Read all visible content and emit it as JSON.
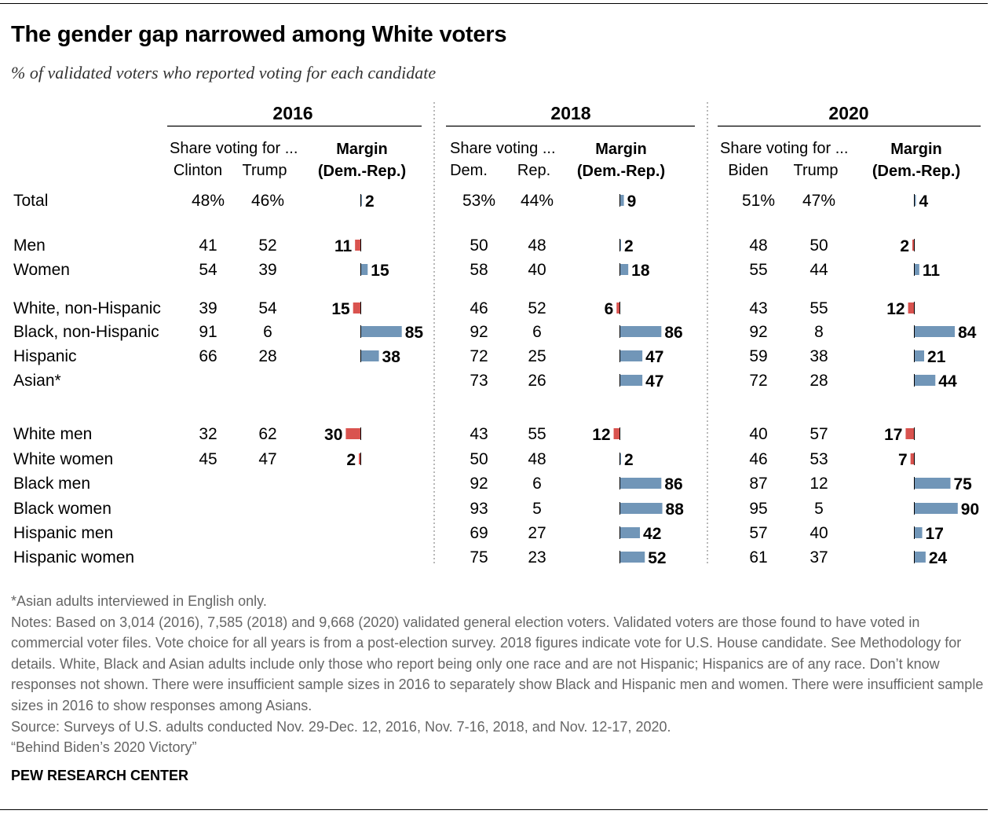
{
  "title": "The gender gap narrowed among White voters",
  "subtitle": "% of validated voters who reported voting for each candidate",
  "colors": {
    "dem": "#7196b8",
    "rep": "#d9534f",
    "text": "#000000",
    "note": "#666666",
    "divider": "#888888"
  },
  "chart_data": {
    "type": "table",
    "groups": [
      {
        "year": "2016",
        "share_header": "Share voting for ...",
        "dem_label": "Clinton",
        "rep_label": "Trump",
        "margin_header": [
          "Margin",
          "(Dem.-Rep.)"
        ]
      },
      {
        "year": "2018",
        "share_header": "Share voting ...",
        "dem_label": "Dem.",
        "rep_label": "Rep.",
        "margin_header": [
          "Margin",
          "(Dem.-Rep.)"
        ]
      },
      {
        "year": "2020",
        "share_header": "Share voting for ...",
        "dem_label": "Biden",
        "rep_label": "Trump",
        "margin_header": [
          "Margin",
          "(Dem.-Rep.)"
        ]
      }
    ],
    "rows": [
      {
        "label": "Total",
        "values": [
          {
            "dem": "48%",
            "rep": "46%",
            "margin": 2
          },
          {
            "dem": "53%",
            "rep": "44%",
            "margin": 9
          },
          {
            "dem": "51%",
            "rep": "47%",
            "margin": 4
          }
        ]
      },
      {
        "label": "Men",
        "values": [
          {
            "dem": "41",
            "rep": "52",
            "margin": -11
          },
          {
            "dem": "50",
            "rep": "48",
            "margin": 2
          },
          {
            "dem": "48",
            "rep": "50",
            "margin": -2
          }
        ]
      },
      {
        "label": "Women",
        "values": [
          {
            "dem": "54",
            "rep": "39",
            "margin": 15
          },
          {
            "dem": "58",
            "rep": "40",
            "margin": 18
          },
          {
            "dem": "55",
            "rep": "44",
            "margin": 11
          }
        ]
      },
      {
        "label": "White, non-Hispanic",
        "values": [
          {
            "dem": "39",
            "rep": "54",
            "margin": -15
          },
          {
            "dem": "46",
            "rep": "52",
            "margin": -6
          },
          {
            "dem": "43",
            "rep": "55",
            "margin": -12
          }
        ]
      },
      {
        "label": "Black, non-Hispanic",
        "values": [
          {
            "dem": "91",
            "rep": "6",
            "margin": 85
          },
          {
            "dem": "92",
            "rep": "6",
            "margin": 86
          },
          {
            "dem": "92",
            "rep": "8",
            "margin": 84
          }
        ]
      },
      {
        "label": "Hispanic",
        "values": [
          {
            "dem": "66",
            "rep": "28",
            "margin": 38
          },
          {
            "dem": "72",
            "rep": "25",
            "margin": 47
          },
          {
            "dem": "59",
            "rep": "38",
            "margin": 21
          }
        ]
      },
      {
        "label": "Asian*",
        "values": [
          null,
          {
            "dem": "73",
            "rep": "26",
            "margin": 47
          },
          {
            "dem": "72",
            "rep": "28",
            "margin": 44
          }
        ]
      },
      {
        "label": "White men",
        "values": [
          {
            "dem": "32",
            "rep": "62",
            "margin": -30
          },
          {
            "dem": "43",
            "rep": "55",
            "margin": -12
          },
          {
            "dem": "40",
            "rep": "57",
            "margin": -17
          }
        ]
      },
      {
        "label": "White women",
        "values": [
          {
            "dem": "45",
            "rep": "47",
            "margin": -2
          },
          {
            "dem": "50",
            "rep": "48",
            "margin": 2
          },
          {
            "dem": "46",
            "rep": "53",
            "margin": -7
          }
        ]
      },
      {
        "label": "Black men",
        "values": [
          null,
          {
            "dem": "92",
            "rep": "6",
            "margin": 86
          },
          {
            "dem": "87",
            "rep": "12",
            "margin": 75
          }
        ]
      },
      {
        "label": "Black women",
        "values": [
          null,
          {
            "dem": "93",
            "rep": "5",
            "margin": 88
          },
          {
            "dem": "95",
            "rep": "5",
            "margin": 90
          }
        ]
      },
      {
        "label": "Hispanic men",
        "values": [
          null,
          {
            "dem": "69",
            "rep": "27",
            "margin": 42
          },
          {
            "dem": "57",
            "rep": "40",
            "margin": 17
          }
        ]
      },
      {
        "label": "Hispanic women",
        "values": [
          null,
          {
            "dem": "75",
            "rep": "23",
            "margin": 52
          },
          {
            "dem": "61",
            "rep": "37",
            "margin": 24
          }
        ]
      }
    ]
  },
  "notes": [
    "*Asian adults interviewed in English only.",
    "Notes: Based on 3,014 (2016), 7,585 (2018) and 9,668 (2020) validated general election voters. Validated voters are those found to have voted in commercial voter files. Vote choice for all years is from a post-election survey. 2018 figures indicate vote for U.S. House candidate. See Methodology for details. White, Black and Asian adults include only those who report being only one race and are not Hispanic; Hispanics are of any race. Don’t know responses not shown. There were insufficient sample sizes in 2016 to separately show Black and Hispanic men and women. There were insufficient sample sizes in 2016 to show responses among Asians.",
    "Source: Surveys of U.S. adults conducted Nov. 29-Dec. 12, 2016, Nov. 7-16, 2018, and Nov. 12-17, 2020.",
    "“Behind Biden’s 2020 Victory”"
  ],
  "source_org": "PEW RESEARCH CENTER"
}
